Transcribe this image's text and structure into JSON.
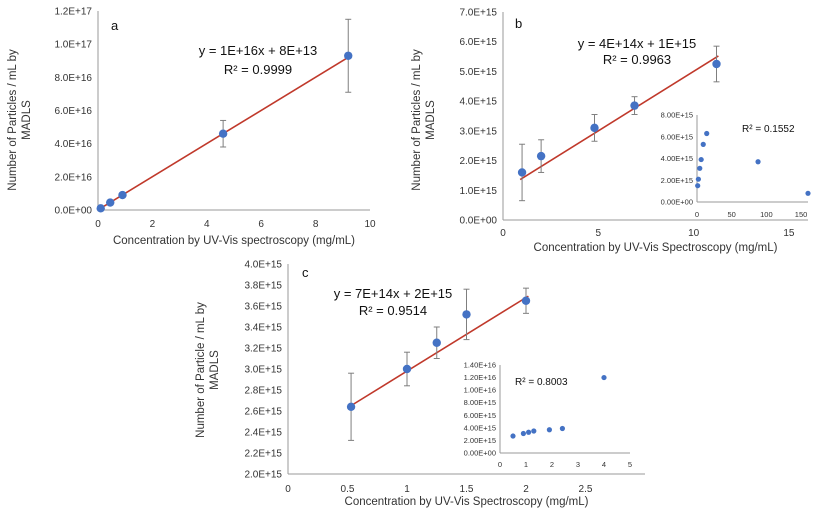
{
  "chart_data": [
    {
      "type": "scatter",
      "panel_label": "a",
      "xlabel": "Concentration by UV-Vis spectroscopy (mg/mL)",
      "ylabel": [
        "Number of Particles / mL by",
        "MADLS"
      ],
      "xlim": [
        0,
        10
      ],
      "ylim": [
        0,
        1.2e+17
      ],
      "x_ticks": [
        "0",
        "2",
        "4",
        "6",
        "8",
        "10"
      ],
      "y_ticks": [
        "0.0E+00",
        "2.0E+16",
        "4.0E+16",
        "6.0E+16",
        "8.0E+16",
        "1.0E+17",
        "1.2E+17"
      ],
      "equation": "y = 1E+16x + 8E+13",
      "r_squared": "R² = 0.9999",
      "trendline": {
        "slope": 1e+16,
        "intercept": 80000000000000.0,
        "x_range": [
          0.05,
          9.2
        ],
        "color": "#c0392b"
      },
      "marker_color": "#4472c4",
      "series": [
        {
          "x": [
            0.1,
            0.45,
            0.9,
            4.6,
            9.2
          ],
          "y": [
            1000000000000000.0,
            4500000000000000.0,
            9000000000000000.0,
            4.6e+16,
            9.3e+16
          ],
          "y_err": [
            0,
            0,
            0,
            8000000000000000.0,
            2.2e+16
          ]
        }
      ]
    },
    {
      "type": "scatter",
      "panel_label": "b",
      "xlabel": "Concentration by UV-Vis Spectroscopy (mg/mL)",
      "ylabel": [
        "Number of Particles / mL by",
        "MADLS"
      ],
      "xlim": [
        0,
        16
      ],
      "ylim": [
        0,
        7000000000000000.0
      ],
      "x_ticks": [
        "0",
        "5",
        "10",
        "15"
      ],
      "y_ticks": [
        "0.0E+00",
        "1.0E+15",
        "2.0E+15",
        "3.0E+15",
        "4.0E+15",
        "5.0E+15",
        "6.0E+15",
        "7.0E+15"
      ],
      "equation": "y = 4E+14x + 1E+15",
      "r_squared": "R² = 0.9963",
      "trendline": {
        "slope": 400000000000000.0,
        "intercept": 1000000000000000.0,
        "x_range": [
          0.9,
          11.3
        ],
        "color": "#c0392b"
      },
      "marker_color": "#4472c4",
      "series": [
        {
          "x": [
            1.0,
            2.0,
            4.8,
            6.9,
            11.2
          ],
          "y": [
            1600000000000000.0,
            2150000000000000.0,
            3100000000000000.0,
            3850000000000000.0,
            5250000000000000.0
          ],
          "y_err": [
            950000000000000.0,
            550000000000000.0,
            450000000000000.0,
            300000000000000.0,
            600000000000000.0
          ]
        }
      ],
      "inset": {
        "xlim": [
          0,
          160
        ],
        "ylim": [
          0,
          8000000000000000.0
        ],
        "x_ticks": [
          "0",
          "50",
          "100",
          "150"
        ],
        "y_ticks": [
          "0.00E+00",
          "2.00E+15",
          "4.00E+15",
          "6.00E+15",
          "8.00E+15"
        ],
        "r_squared": "R² = 0.1552",
        "points": {
          "x": [
            1,
            2,
            4,
            6,
            9,
            14,
            88,
            160
          ],
          "y": [
            1500000000000000.0,
            2100000000000000.0,
            3100000000000000.0,
            3900000000000000.0,
            5300000000000000.0,
            6300000000000000.0,
            3700000000000000.0,
            800000000000000.0
          ]
        }
      }
    },
    {
      "type": "scatter",
      "panel_label": "c",
      "xlabel": "Concentration by UV-Vis Spectroscopy (mg/mL)",
      "ylabel": [
        "Number of Particle / mL by",
        "MADLS"
      ],
      "xlim": [
        0,
        3
      ],
      "ylim": [
        2000000000000000.0,
        4000000000000000.0
      ],
      "x_ticks": [
        "0",
        "0.5",
        "1",
        "1.5",
        "2",
        "2.5"
      ],
      "y_ticks": [
        "2.0E+15",
        "2.2E+15",
        "2.4E+15",
        "2.6E+15",
        "2.8E+15",
        "3.0E+15",
        "3.2E+15",
        "3.4E+15",
        "3.6E+15",
        "3.8E+15",
        "4.0E+15"
      ],
      "equation": "y = 7E+14x + 2E+15",
      "r_squared": "R² = 0.9514",
      "trendline": {
        "slope": 700000000000000.0,
        "intercept": 2280000000000000.0,
        "x_range": [
          0.52,
          2.02
        ],
        "color": "#c0392b"
      },
      "marker_color": "#4472c4",
      "series": [
        {
          "x": [
            0.53,
            1.0,
            1.25,
            1.5,
            2.0
          ],
          "y": [
            2640000000000000.0,
            3000000000000000.0,
            3250000000000000.0,
            3520000000000000.0,
            3650000000000000.0
          ],
          "y_err": [
            320000000000000.0,
            160000000000000.0,
            150000000000000.0,
            240000000000000.0,
            120000000000000.0
          ]
        }
      ],
      "inset": {
        "xlim": [
          0,
          5
        ],
        "ylim": [
          0,
          1.4e+16
        ],
        "x_ticks": [
          "0",
          "1",
          "2",
          "3",
          "4",
          "5"
        ],
        "y_ticks": [
          "0.00E+00",
          "2.00E+15",
          "4.00E+15",
          "6.00E+15",
          "8.00E+15",
          "1.00E+16",
          "1.20E+16",
          "1.40E+16"
        ],
        "r_squared": "R² = 0.8003",
        "points": {
          "x": [
            0.5,
            0.9,
            1.1,
            1.3,
            1.9,
            2.4,
            4.0
          ],
          "y": [
            2700000000000000.0,
            3100000000000000.0,
            3300000000000000.0,
            3500000000000000.0,
            3700000000000000.0,
            3900000000000000.0,
            1.2e+16
          ]
        }
      }
    }
  ]
}
